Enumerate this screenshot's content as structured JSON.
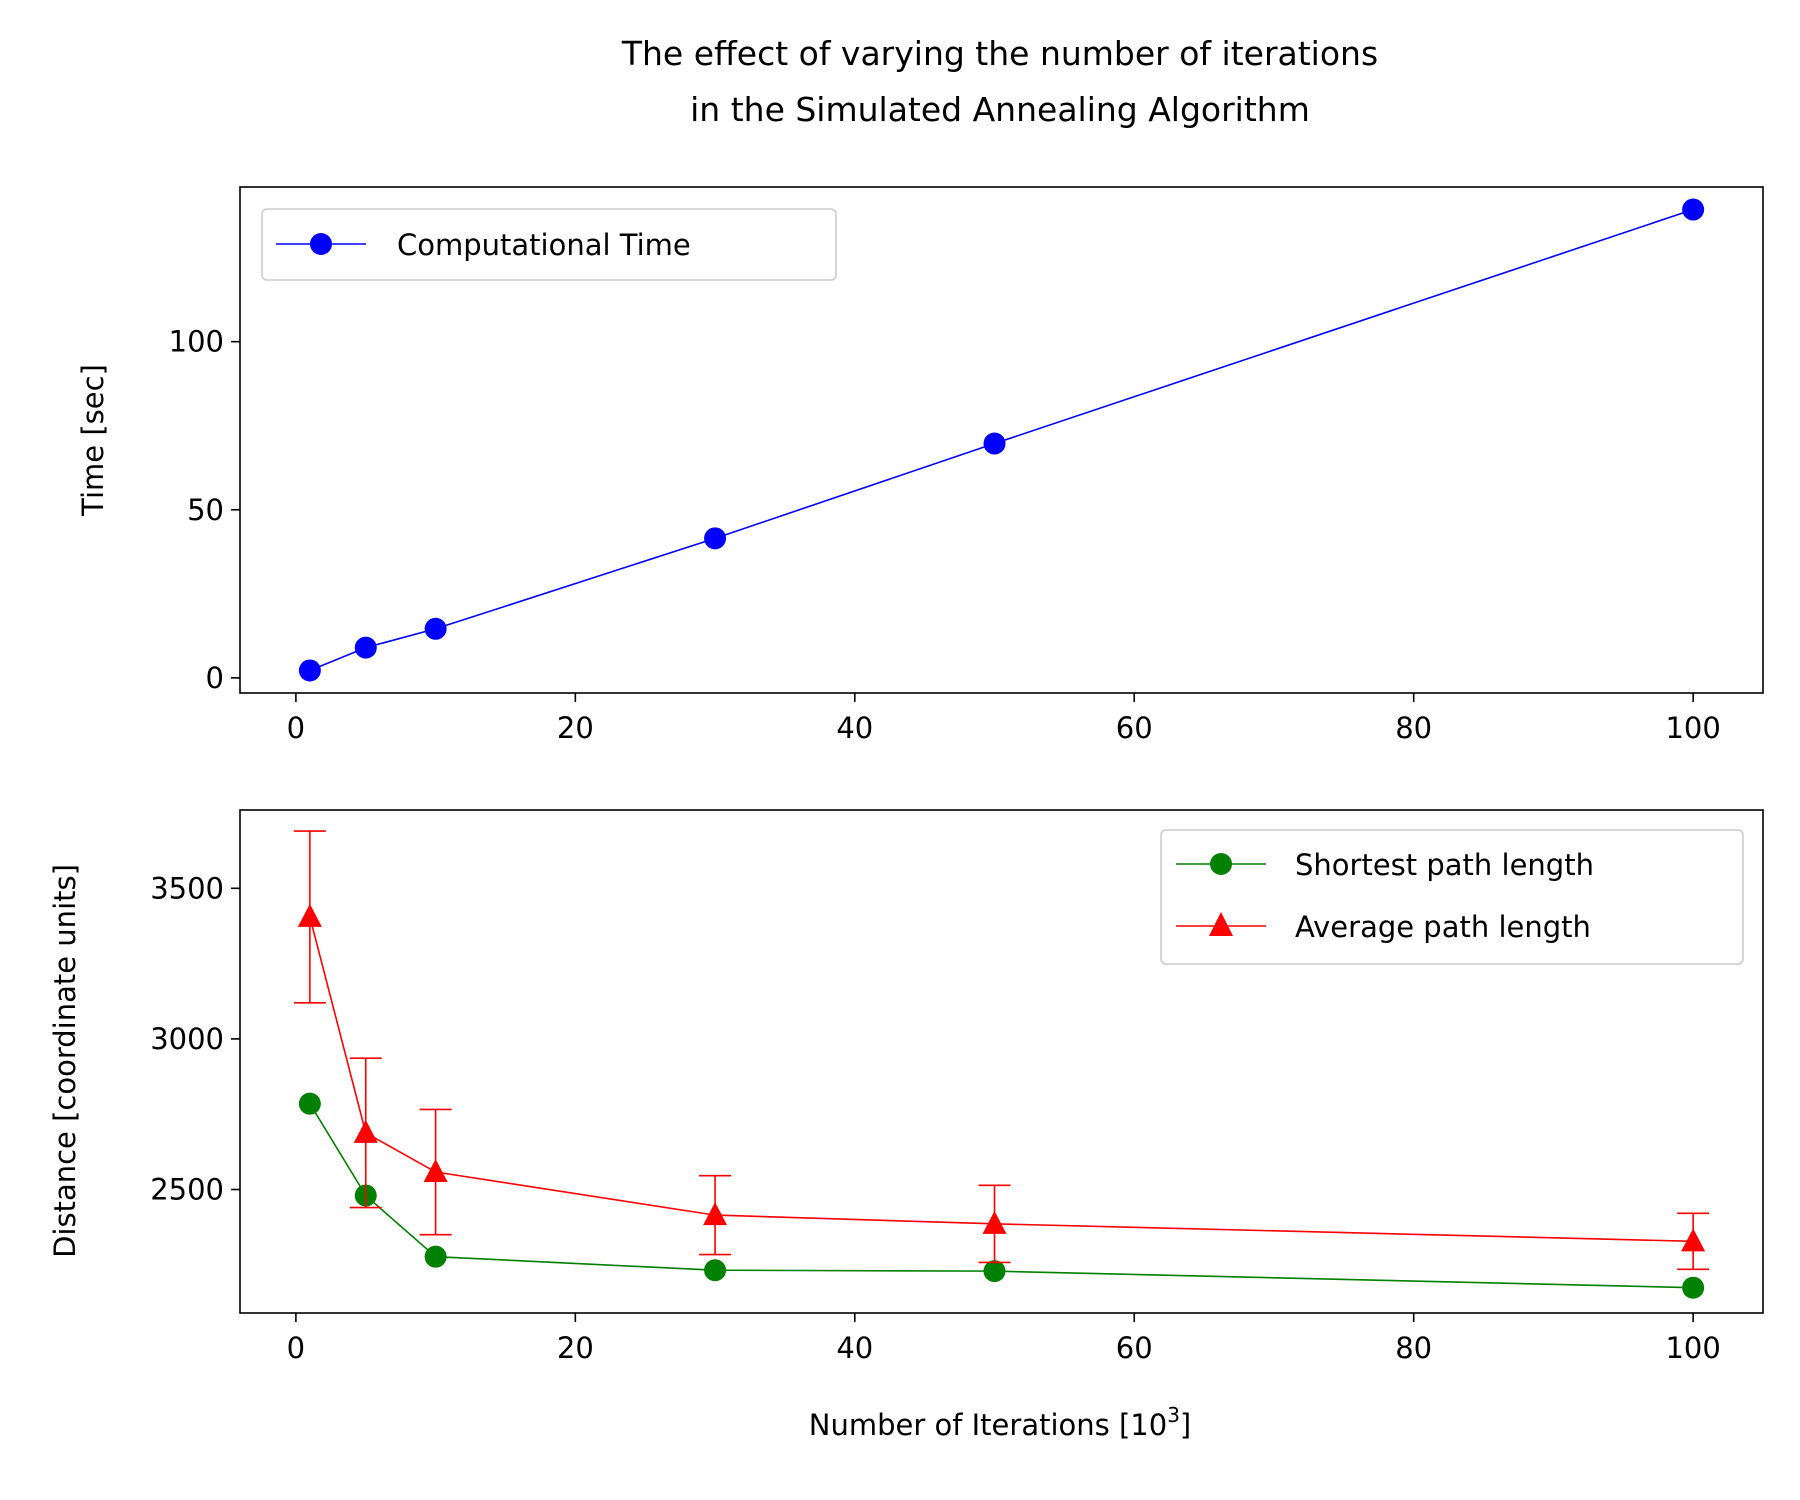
{
  "figure": {
    "title_line1": "The effect of varying the number of iterations",
    "title_line2": "in the Simulated Annealing Algorithm"
  },
  "chart_data": [
    {
      "type": "line",
      "xlabel": "",
      "ylabel": "Time [sec]",
      "xlim": [
        -4,
        105
      ],
      "ylim": [
        -4.5,
        146
      ],
      "xticks": [
        0,
        20,
        40,
        60,
        80,
        100
      ],
      "yticks": [
        0,
        50,
        100
      ],
      "grid": false,
      "legend": "top-left",
      "series": [
        {
          "name": "Computational Time",
          "color": "#0000ff",
          "marker": "circle",
          "x": [
            1,
            5,
            10,
            30,
            50,
            100
          ],
          "y": [
            2.2,
            9.0,
            14.6,
            41.5,
            69.7,
            139.3
          ]
        }
      ]
    },
    {
      "type": "line",
      "xlabel": "Number of Iterations [10^3]",
      "xlabel_base": "Number of Iterations [10",
      "xlabel_sup": "3",
      "xlabel_end": "]",
      "ylabel": "Distance [coordinate units]",
      "xlim": [
        -4,
        105
      ],
      "ylim": [
        2090,
        3760
      ],
      "xticks": [
        0,
        20,
        40,
        60,
        80,
        100
      ],
      "yticks": [
        2500,
        3000,
        3500
      ],
      "grid": false,
      "legend": "top-right",
      "series": [
        {
          "name": "Shortest path length",
          "color": "#008000",
          "marker": "circle",
          "x": [
            1,
            5,
            10,
            30,
            50,
            100
          ],
          "y": [
            2785,
            2480,
            2277,
            2232,
            2229,
            2174
          ]
        },
        {
          "name": "Average path length",
          "color": "#ff0000",
          "marker": "triangle",
          "x": [
            1,
            5,
            10,
            30,
            50,
            100
          ],
          "y": [
            3405,
            2688,
            2558,
            2415,
            2386,
            2328
          ],
          "error": [
            285,
            248,
            208,
            131,
            128,
            93
          ]
        }
      ]
    }
  ]
}
